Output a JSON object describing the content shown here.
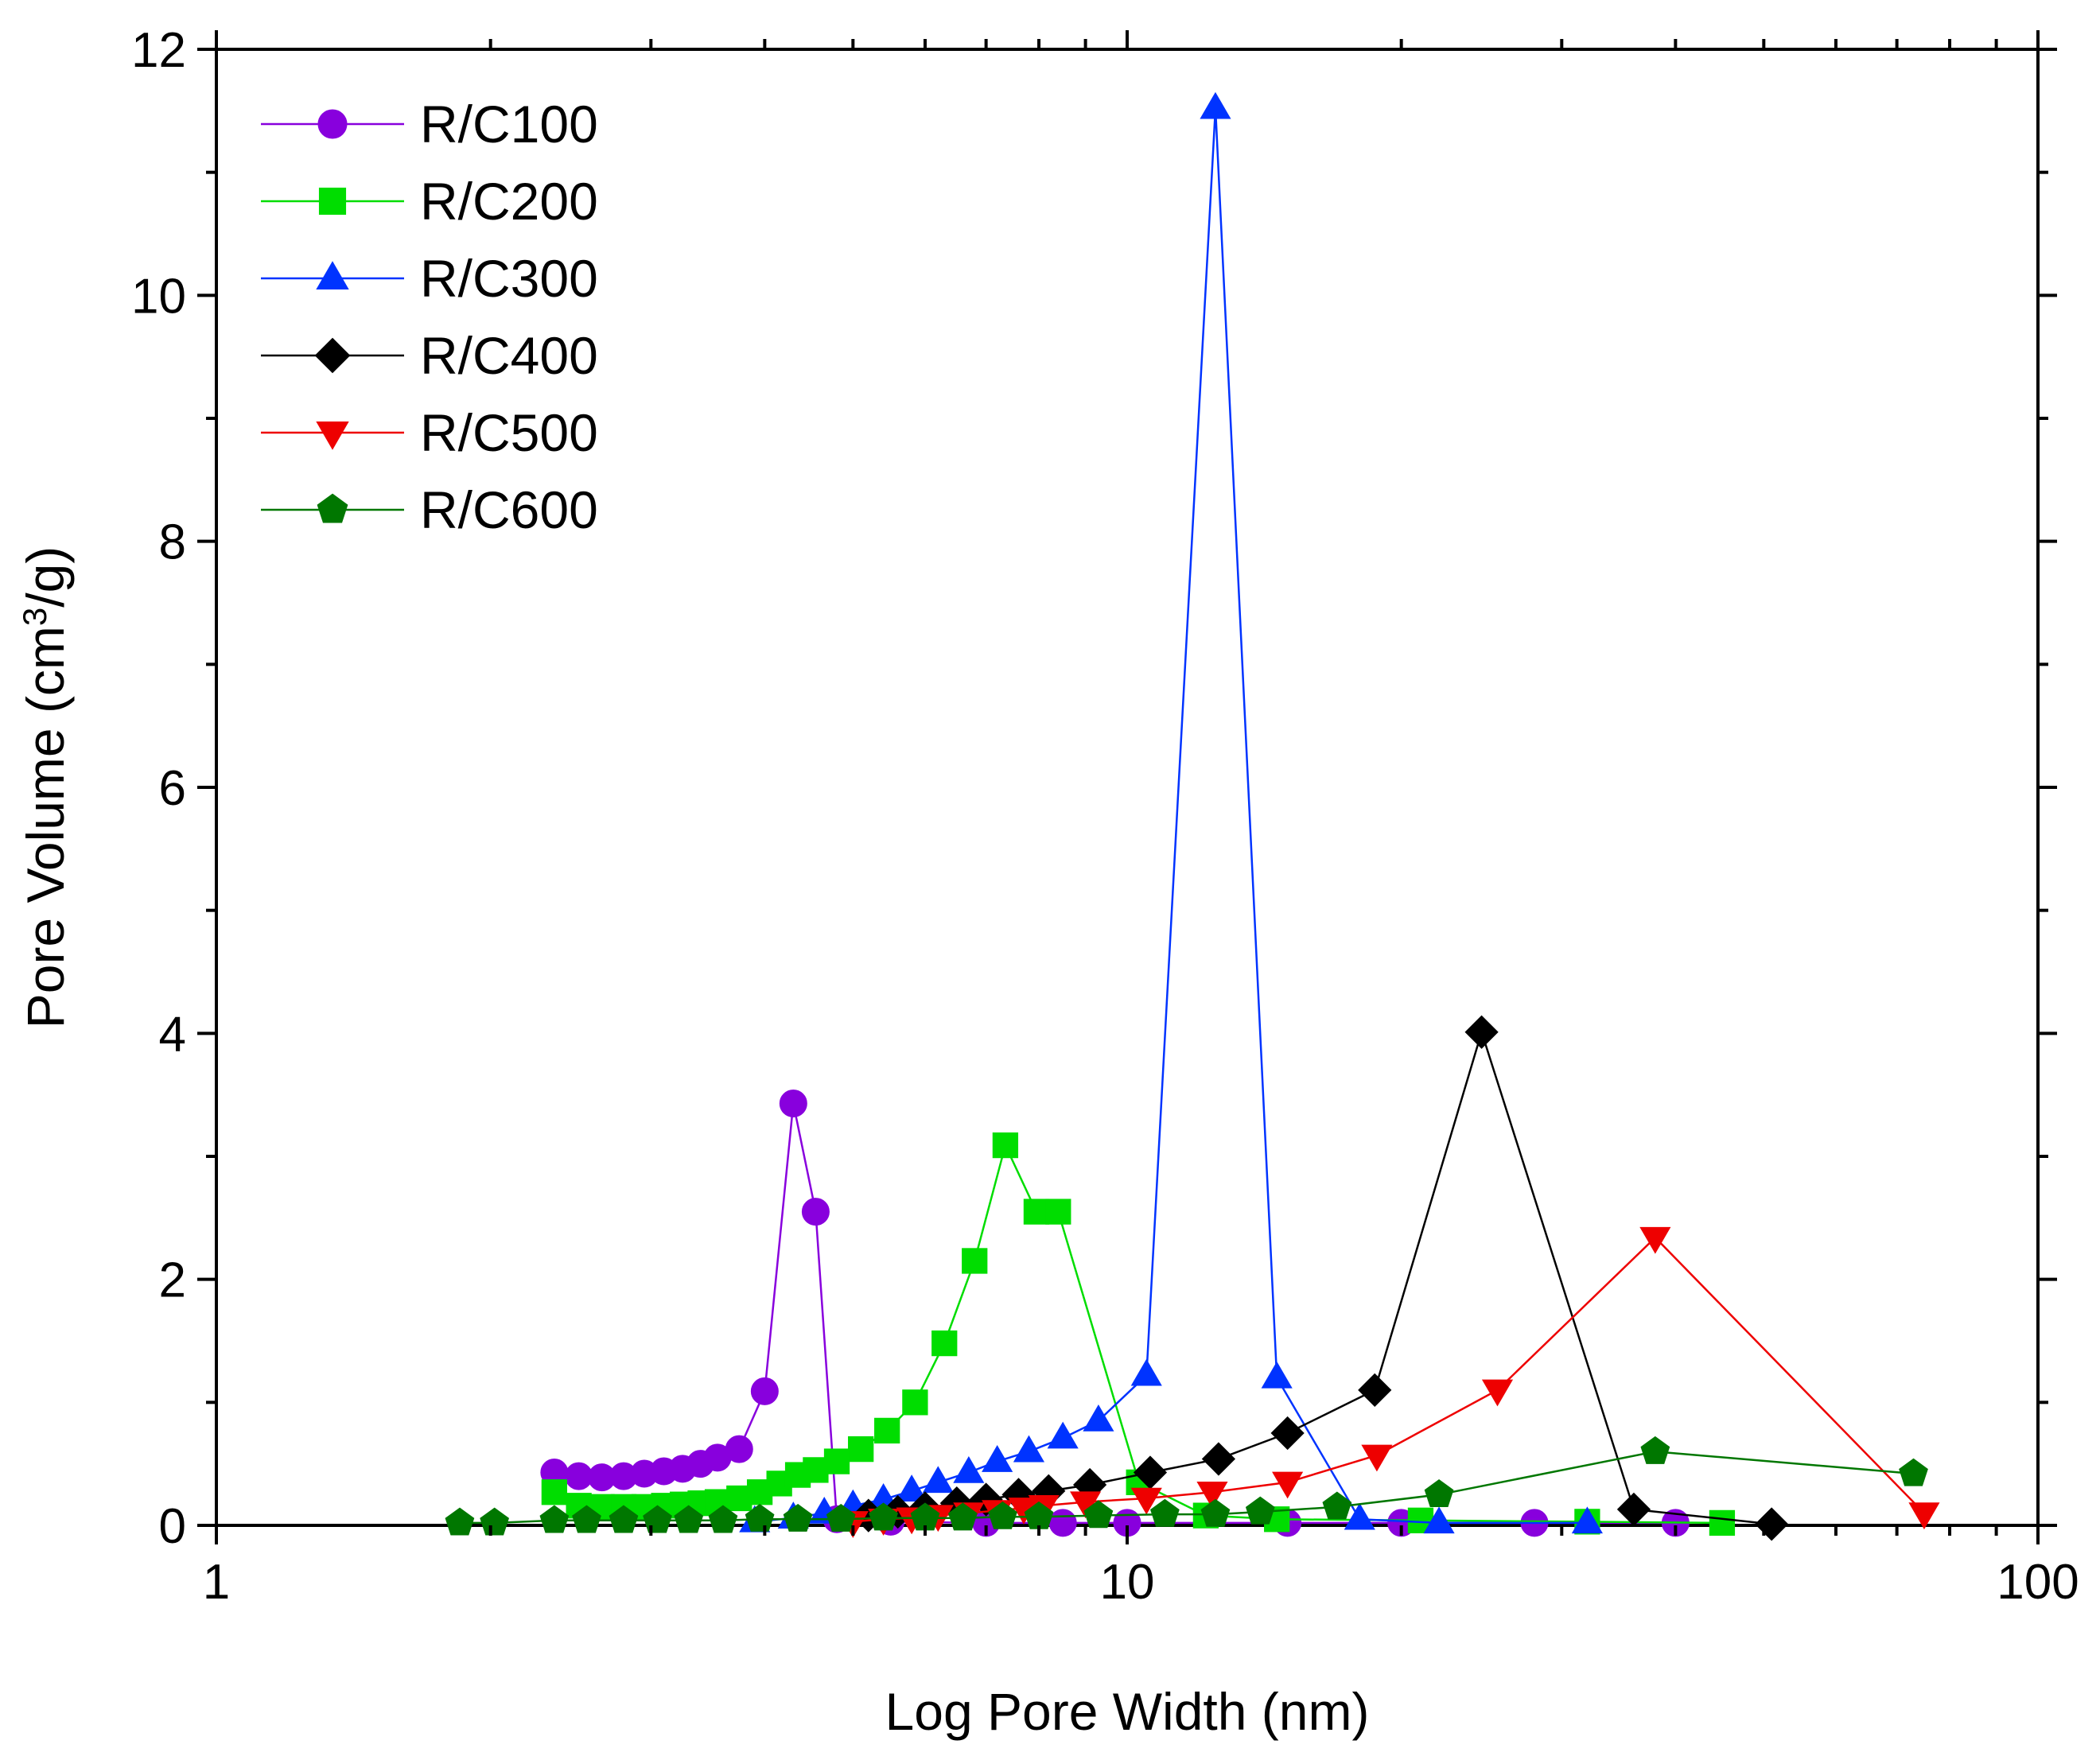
{
  "chart_data": {
    "type": "line",
    "title": "",
    "xlabel": "Log Pore Width (nm)",
    "ylabel_parts": [
      "Pore Volume (cm",
      "3",
      "/g)"
    ],
    "x_scale": "log",
    "xlim": [
      1,
      100
    ],
    "ylim": [
      0,
      12
    ],
    "x_ticks": [
      1,
      10,
      100
    ],
    "x_tick_labels": [
      "1",
      "10",
      "100"
    ],
    "y_ticks": [
      0,
      2,
      4,
      6,
      8,
      10,
      12
    ],
    "y_tick_labels": [
      "0",
      "2",
      "4",
      "6",
      "8",
      "10",
      "12"
    ],
    "grid": false,
    "legend_position": "top-left",
    "series": [
      {
        "name": "R/C100",
        "color": "#8800dd",
        "marker": "circle",
        "x": [
          2.35,
          2.5,
          2.65,
          2.8,
          2.95,
          3.1,
          3.25,
          3.4,
          3.55,
          3.75,
          4.0,
          4.3,
          4.55,
          4.8,
          5.5,
          7.0,
          8.5,
          10,
          15,
          20,
          28,
          40
        ],
        "y": [
          0.43,
          0.4,
          0.39,
          0.4,
          0.42,
          0.44,
          0.46,
          0.5,
          0.55,
          0.62,
          1.09,
          3.43,
          2.55,
          0.05,
          0.03,
          0.02,
          0.02,
          0.02,
          0.02,
          0.02,
          0.02,
          0.02
        ]
      },
      {
        "name": "R/C200",
        "color": "#00dd00",
        "marker": "square",
        "x": [
          2.35,
          2.5,
          2.65,
          2.8,
          2.95,
          3.1,
          3.25,
          3.4,
          3.55,
          3.75,
          3.95,
          4.15,
          4.35,
          4.55,
          4.8,
          5.1,
          5.45,
          5.85,
          6.3,
          6.8,
          7.35,
          7.95,
          8.4,
          10.3,
          12.2,
          14.6,
          21,
          32,
          45
        ],
        "y": [
          0.27,
          0.16,
          0.15,
          0.15,
          0.15,
          0.16,
          0.17,
          0.18,
          0.19,
          0.22,
          0.27,
          0.34,
          0.41,
          0.45,
          0.52,
          0.62,
          0.77,
          1.0,
          1.48,
          2.15,
          3.09,
          2.55,
          2.55,
          0.35,
          0.08,
          0.05,
          0.04,
          0.03,
          0.02
        ]
      },
      {
        "name": "R/C300",
        "color": "#0033ff",
        "marker": "triangle-up",
        "x": [
          3.9,
          4.3,
          4.65,
          5.0,
          5.4,
          5.8,
          6.2,
          6.7,
          7.2,
          7.8,
          8.5,
          9.3,
          10.5,
          12.5,
          14.6,
          18,
          22,
          32
        ],
        "y": [
          0.03,
          0.06,
          0.1,
          0.16,
          0.21,
          0.28,
          0.35,
          0.43,
          0.52,
          0.6,
          0.71,
          0.85,
          1.22,
          11.52,
          1.2,
          0.05,
          0.02,
          0.02
        ]
      },
      {
        "name": "R/C400",
        "color": "#000000",
        "marker": "diamond",
        "x": [
          5.2,
          5.6,
          6.0,
          6.5,
          7.0,
          7.6,
          8.2,
          9.1,
          10.6,
          12.6,
          15.0,
          18.7,
          24.5,
          36,
          51
        ],
        "y": [
          0.08,
          0.11,
          0.14,
          0.18,
          0.21,
          0.25,
          0.28,
          0.33,
          0.43,
          0.54,
          0.75,
          1.1,
          4.01,
          0.13,
          0.01
        ]
      },
      {
        "name": "R/C500",
        "color": "#ee0000",
        "marker": "triangle-down",
        "x": [
          5.0,
          5.4,
          5.8,
          6.2,
          6.7,
          7.2,
          7.7,
          8.1,
          9.0,
          10.5,
          12.4,
          15.0,
          18.8,
          25.5,
          38,
          75
        ],
        "y": [
          0.03,
          0.05,
          0.06,
          0.08,
          0.1,
          0.12,
          0.14,
          0.16,
          0.19,
          0.22,
          0.27,
          0.35,
          0.57,
          1.1,
          2.34,
          0.1
        ]
      },
      {
        "name": "R/C600",
        "color": "#007700",
        "marker": "pentagon",
        "x": [
          1.85,
          2.02,
          2.35,
          2.55,
          2.8,
          3.05,
          3.3,
          3.6,
          3.95,
          4.35,
          4.85,
          5.4,
          6.0,
          6.6,
          7.3,
          8.0,
          9.3,
          11.0,
          12.5,
          14.0,
          17.0,
          22.0,
          38,
          73
        ],
        "y": [
          0.02,
          0.02,
          0.04,
          0.04,
          0.04,
          0.04,
          0.04,
          0.04,
          0.05,
          0.05,
          0.05,
          0.06,
          0.06,
          0.06,
          0.07,
          0.07,
          0.08,
          0.09,
          0.09,
          0.11,
          0.15,
          0.25,
          0.6,
          0.42
        ]
      }
    ]
  }
}
